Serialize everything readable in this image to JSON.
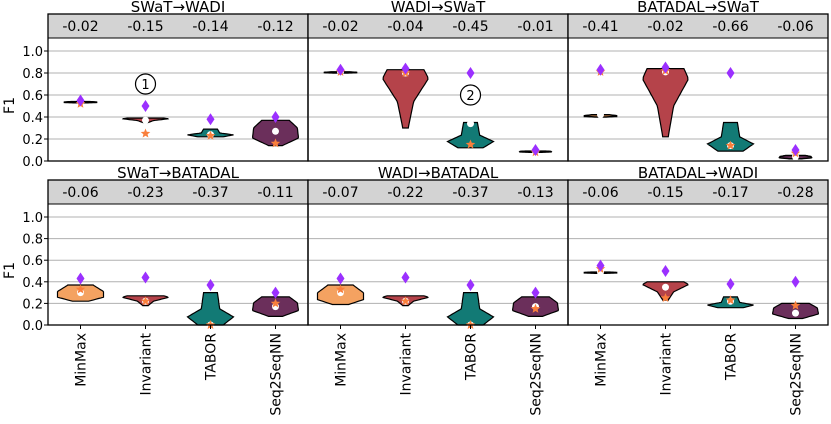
{
  "chart_data": {
    "type": "violin",
    "ylabel": "F1",
    "ylim": [
      0.0,
      1.0
    ],
    "yticks": [
      "0.0",
      "0.2",
      "0.4",
      "0.6",
      "0.8",
      "1.0"
    ],
    "grid": "horizontal",
    "categories": [
      "MinMax",
      "Invariant",
      "TABOR",
      "Seq2SeqNN"
    ],
    "colors": {
      "MinMax": "#f4a261",
      "Invariant": "#b5434a",
      "TABOR": "#127a75",
      "Seq2SeqNN": "#6b2f5b",
      "diamond": "#9b30ff",
      "star": "#f97f3c",
      "delta_band": "#d3d3d3"
    },
    "panels": [
      {
        "title": "SWaT→WADI",
        "deltas": [
          "-0.02",
          "-0.15",
          "-0.14",
          "-0.12"
        ],
        "violins": [
          {
            "method": "MinMax",
            "min": 0.53,
            "max": 0.54,
            "median": 0.53,
            "diamond": 0.55,
            "star": 0.52
          },
          {
            "method": "Invariant",
            "min": 0.35,
            "max": 0.39,
            "median": 0.37,
            "diamond": 0.5,
            "star": 0.25
          },
          {
            "method": "TABOR",
            "min": 0.22,
            "max": 0.29,
            "median": 0.24,
            "diamond": 0.38,
            "star": 0.23
          },
          {
            "method": "Seq2SeqNN",
            "min": 0.14,
            "max": 0.37,
            "median": 0.27,
            "diamond": 0.4,
            "star": 0.16
          }
        ],
        "annotations": [
          {
            "label": "1",
            "category": "Invariant",
            "y": 0.7
          }
        ]
      },
      {
        "title": "WADI→SWaT",
        "deltas": [
          "-0.02",
          "-0.04",
          "-0.45",
          "-0.01"
        ],
        "violins": [
          {
            "method": "MinMax",
            "min": 0.8,
            "max": 0.81,
            "median": 0.81,
            "diamond": 0.83,
            "star": 0.81
          },
          {
            "method": "Invariant",
            "min": 0.3,
            "max": 0.83,
            "median": 0.8,
            "diamond": 0.84,
            "star": 0.8
          },
          {
            "method": "TABOR",
            "min": 0.12,
            "max": 0.35,
            "median": 0.34,
            "diamond": 0.8,
            "star": 0.15
          },
          {
            "method": "Seq2SeqNN",
            "min": 0.08,
            "max": 0.09,
            "median": 0.09,
            "diamond": 0.1,
            "star": 0.08
          }
        ],
        "annotations": [
          {
            "label": "2",
            "category": "TABOR",
            "y": 0.6
          }
        ]
      },
      {
        "title": "BATADAL→SWaT",
        "deltas": [
          "-0.41",
          "-0.02",
          "-0.66",
          "-0.06"
        ],
        "violins": [
          {
            "method": "MinMax",
            "min": 0.4,
            "max": 0.42,
            "median": 0.42,
            "diamond": 0.83,
            "star": 0.81
          },
          {
            "method": "Invariant",
            "min": 0.22,
            "max": 0.84,
            "median": 0.81,
            "diamond": 0.85,
            "star": 0.82
          },
          {
            "method": "TABOR",
            "min": 0.09,
            "max": 0.35,
            "median": 0.14,
            "diamond": 0.8,
            "star": 0.14
          },
          {
            "method": "Seq2SeqNN",
            "min": 0.02,
            "max": 0.05,
            "median": 0.04,
            "diamond": 0.1,
            "star": 0.07
          }
        ],
        "annotations": []
      },
      {
        "title": "SWaT→BATADAL",
        "deltas": [
          "-0.06",
          "-0.23",
          "-0.37",
          "-0.11"
        ],
        "violins": [
          {
            "method": "MinMax",
            "min": 0.22,
            "max": 0.37,
            "median": 0.3,
            "diamond": 0.43,
            "star": 0.33
          },
          {
            "method": "Invariant",
            "min": 0.18,
            "max": 0.27,
            "median": 0.22,
            "diamond": 0.44,
            "star": 0.22
          },
          {
            "method": "TABOR",
            "min": 0.0,
            "max": 0.3,
            "median": 0.0,
            "diamond": 0.37,
            "star": 0.0
          },
          {
            "method": "Seq2SeqNN",
            "min": 0.08,
            "max": 0.26,
            "median": 0.17,
            "diamond": 0.3,
            "star": 0.2
          }
        ],
        "annotations": []
      },
      {
        "title": "WADI→BATADAL",
        "deltas": [
          "-0.07",
          "-0.22",
          "-0.37",
          "-0.13"
        ],
        "violins": [
          {
            "method": "MinMax",
            "min": 0.19,
            "max": 0.37,
            "median": 0.3,
            "diamond": 0.43,
            "star": 0.33
          },
          {
            "method": "Invariant",
            "min": 0.18,
            "max": 0.27,
            "median": 0.22,
            "diamond": 0.44,
            "star": 0.22
          },
          {
            "method": "TABOR",
            "min": 0.0,
            "max": 0.3,
            "median": 0.0,
            "diamond": 0.37,
            "star": 0.0
          },
          {
            "method": "Seq2SeqNN",
            "min": 0.08,
            "max": 0.26,
            "median": 0.17,
            "diamond": 0.3,
            "star": 0.15
          }
        ],
        "annotations": []
      },
      {
        "title": "BATADAL→WADI",
        "deltas": [
          "-0.06",
          "-0.15",
          "-0.17",
          "-0.28"
        ],
        "violins": [
          {
            "method": "MinMax",
            "min": 0.48,
            "max": 0.49,
            "median": 0.49,
            "diamond": 0.55,
            "star": 0.52
          },
          {
            "method": "Invariant",
            "min": 0.23,
            "max": 0.4,
            "median": 0.35,
            "diamond": 0.5,
            "star": 0.25
          },
          {
            "method": "TABOR",
            "min": 0.16,
            "max": 0.26,
            "median": 0.22,
            "diamond": 0.38,
            "star": 0.23
          },
          {
            "method": "Seq2SeqNN",
            "min": 0.06,
            "max": 0.2,
            "median": 0.11,
            "diamond": 0.4,
            "star": 0.18
          }
        ],
        "annotations": []
      }
    ]
  }
}
